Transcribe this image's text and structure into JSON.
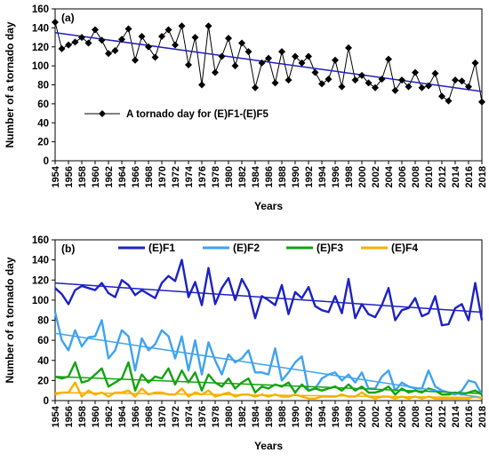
{
  "chart_data": [
    {
      "type": "line",
      "panel_label": "(a)",
      "xlabel": "Years",
      "ylabel": "Number of a tornado day",
      "xlim": [
        1954,
        2018
      ],
      "ylim": [
        0,
        160
      ],
      "yticks": [
        0,
        20,
        40,
        60,
        80,
        100,
        120,
        140,
        160
      ],
      "xtick_step": 2,
      "grid": false,
      "legend_position": "lower-left",
      "colors": {
        "series": "#000000",
        "trend": "#1f1fc0"
      },
      "x": [
        1954,
        1955,
        1956,
        1957,
        1958,
        1959,
        1960,
        1961,
        1962,
        1963,
        1964,
        1965,
        1966,
        1967,
        1968,
        1969,
        1970,
        1971,
        1972,
        1973,
        1974,
        1975,
        1976,
        1977,
        1978,
        1979,
        1980,
        1981,
        1982,
        1983,
        1984,
        1985,
        1986,
        1987,
        1988,
        1989,
        1990,
        1991,
        1992,
        1993,
        1994,
        1995,
        1996,
        1997,
        1998,
        1999,
        2000,
        2001,
        2002,
        2003,
        2004,
        2005,
        2006,
        2007,
        2008,
        2009,
        2010,
        2011,
        2012,
        2013,
        2014,
        2015,
        2016,
        2017,
        2018
      ],
      "series": [
        {
          "name": "A tornado day for (E)F1-(E)F5",
          "values": [
            146,
            118,
            122,
            125,
            130,
            124,
            138,
            127,
            113,
            116,
            128,
            139,
            106,
            131,
            120,
            109,
            131,
            138,
            122,
            142,
            101,
            130,
            80,
            142,
            93,
            110,
            129,
            100,
            124,
            115,
            77,
            103,
            108,
            82,
            115,
            85,
            110,
            103,
            110,
            93,
            81,
            86,
            106,
            78,
            119,
            85,
            90,
            82,
            77,
            86,
            107,
            74,
            85,
            78,
            93,
            77,
            79,
            92,
            68,
            63,
            85,
            84,
            78,
            103,
            62
          ]
        }
      ],
      "trend": {
        "start": [
          1954,
          135
        ],
        "end": [
          2018,
          73
        ]
      }
    },
    {
      "type": "line",
      "panel_label": "(b)",
      "xlabel": "Years",
      "ylabel": "Number of a tornado day",
      "xlim": [
        1954,
        2018
      ],
      "ylim": [
        0,
        160
      ],
      "yticks": [
        0,
        20,
        40,
        60,
        80,
        100,
        120,
        140,
        160
      ],
      "xtick_step": 2,
      "grid": false,
      "legend_position": "top",
      "x": [
        1954,
        1955,
        1956,
        1957,
        1958,
        1959,
        1960,
        1961,
        1962,
        1963,
        1964,
        1965,
        1966,
        1967,
        1968,
        1969,
        1970,
        1971,
        1972,
        1973,
        1974,
        1975,
        1976,
        1977,
        1978,
        1979,
        1980,
        1981,
        1982,
        1983,
        1984,
        1985,
        1986,
        1987,
        1988,
        1989,
        1990,
        1991,
        1992,
        1993,
        1994,
        1995,
        1996,
        1997,
        1998,
        1999,
        2000,
        2001,
        2002,
        2003,
        2004,
        2005,
        2006,
        2007,
        2008,
        2009,
        2010,
        2011,
        2012,
        2013,
        2014,
        2015,
        2016,
        2017,
        2018
      ],
      "series": [
        {
          "name": "(E)F1",
          "color": "#1d22c4",
          "values": [
            112,
            106,
            96,
            110,
            114,
            112,
            110,
            117,
            107,
            103,
            120,
            115,
            105,
            110,
            106,
            102,
            117,
            124,
            119,
            140,
            103,
            118,
            95,
            132,
            96,
            112,
            122,
            100,
            121,
            109,
            82,
            104,
            100,
            95,
            115,
            86,
            108,
            102,
            113,
            94,
            90,
            88,
            104,
            87,
            121,
            82,
            96,
            86,
            83,
            95,
            112,
            80,
            90,
            92,
            102,
            84,
            87,
            104,
            75,
            76,
            92,
            96,
            80,
            117,
            80
          ]
        },
        {
          "name": "(E)F2",
          "color": "#3fa3f0",
          "values": [
            88,
            60,
            50,
            70,
            54,
            63,
            64,
            80,
            42,
            50,
            70,
            64,
            30,
            62,
            50,
            56,
            70,
            64,
            42,
            64,
            30,
            60,
            26,
            58,
            40,
            26,
            46,
            38,
            42,
            50,
            28,
            28,
            26,
            52,
            20,
            28,
            38,
            44,
            10,
            12,
            22,
            26,
            28,
            20,
            26,
            18,
            28,
            12,
            12,
            24,
            30,
            10,
            18,
            14,
            12,
            12,
            30,
            14,
            10,
            8,
            6,
            10,
            20,
            18,
            6
          ]
        },
        {
          "name": "(E)F3",
          "color": "#13a313",
          "values": [
            24,
            22,
            24,
            38,
            18,
            20,
            26,
            32,
            14,
            18,
            22,
            38,
            10,
            26,
            18,
            24,
            22,
            32,
            16,
            30,
            18,
            28,
            10,
            26,
            18,
            14,
            22,
            12,
            18,
            22,
            8,
            14,
            12,
            16,
            14,
            18,
            8,
            16,
            10,
            12,
            10,
            12,
            14,
            10,
            16,
            10,
            14,
            8,
            8,
            10,
            14,
            6,
            12,
            8,
            10,
            8,
            12,
            10,
            6,
            6,
            8,
            6,
            8,
            10,
            6
          ]
        },
        {
          "name": "(E)F4",
          "color": "#f7b000",
          "values": [
            6,
            8,
            8,
            18,
            4,
            10,
            6,
            8,
            4,
            8,
            8,
            10,
            4,
            12,
            6,
            8,
            8,
            6,
            6,
            12,
            4,
            8,
            6,
            10,
            4,
            6,
            8,
            4,
            6,
            6,
            4,
            6,
            4,
            6,
            4,
            4,
            6,
            4,
            2,
            2,
            4,
            4,
            4,
            6,
            4,
            4,
            8,
            4,
            2,
            4,
            4,
            2,
            4,
            2,
            4,
            2,
            4,
            2,
            2,
            2,
            2,
            2,
            2,
            4,
            2
          ]
        }
      ],
      "trends": [
        {
          "series": "(E)F1",
          "start": [
            1954,
            117
          ],
          "end": [
            2018,
            88
          ]
        },
        {
          "series": "(E)F2",
          "start": [
            1954,
            67
          ],
          "end": [
            2018,
            3
          ]
        },
        {
          "series": "(E)F3",
          "start": [
            1954,
            24
          ],
          "end": [
            2018,
            7
          ]
        },
        {
          "series": "(E)F4",
          "start": [
            1954,
            8
          ],
          "end": [
            2018,
            3
          ]
        }
      ]
    }
  ]
}
